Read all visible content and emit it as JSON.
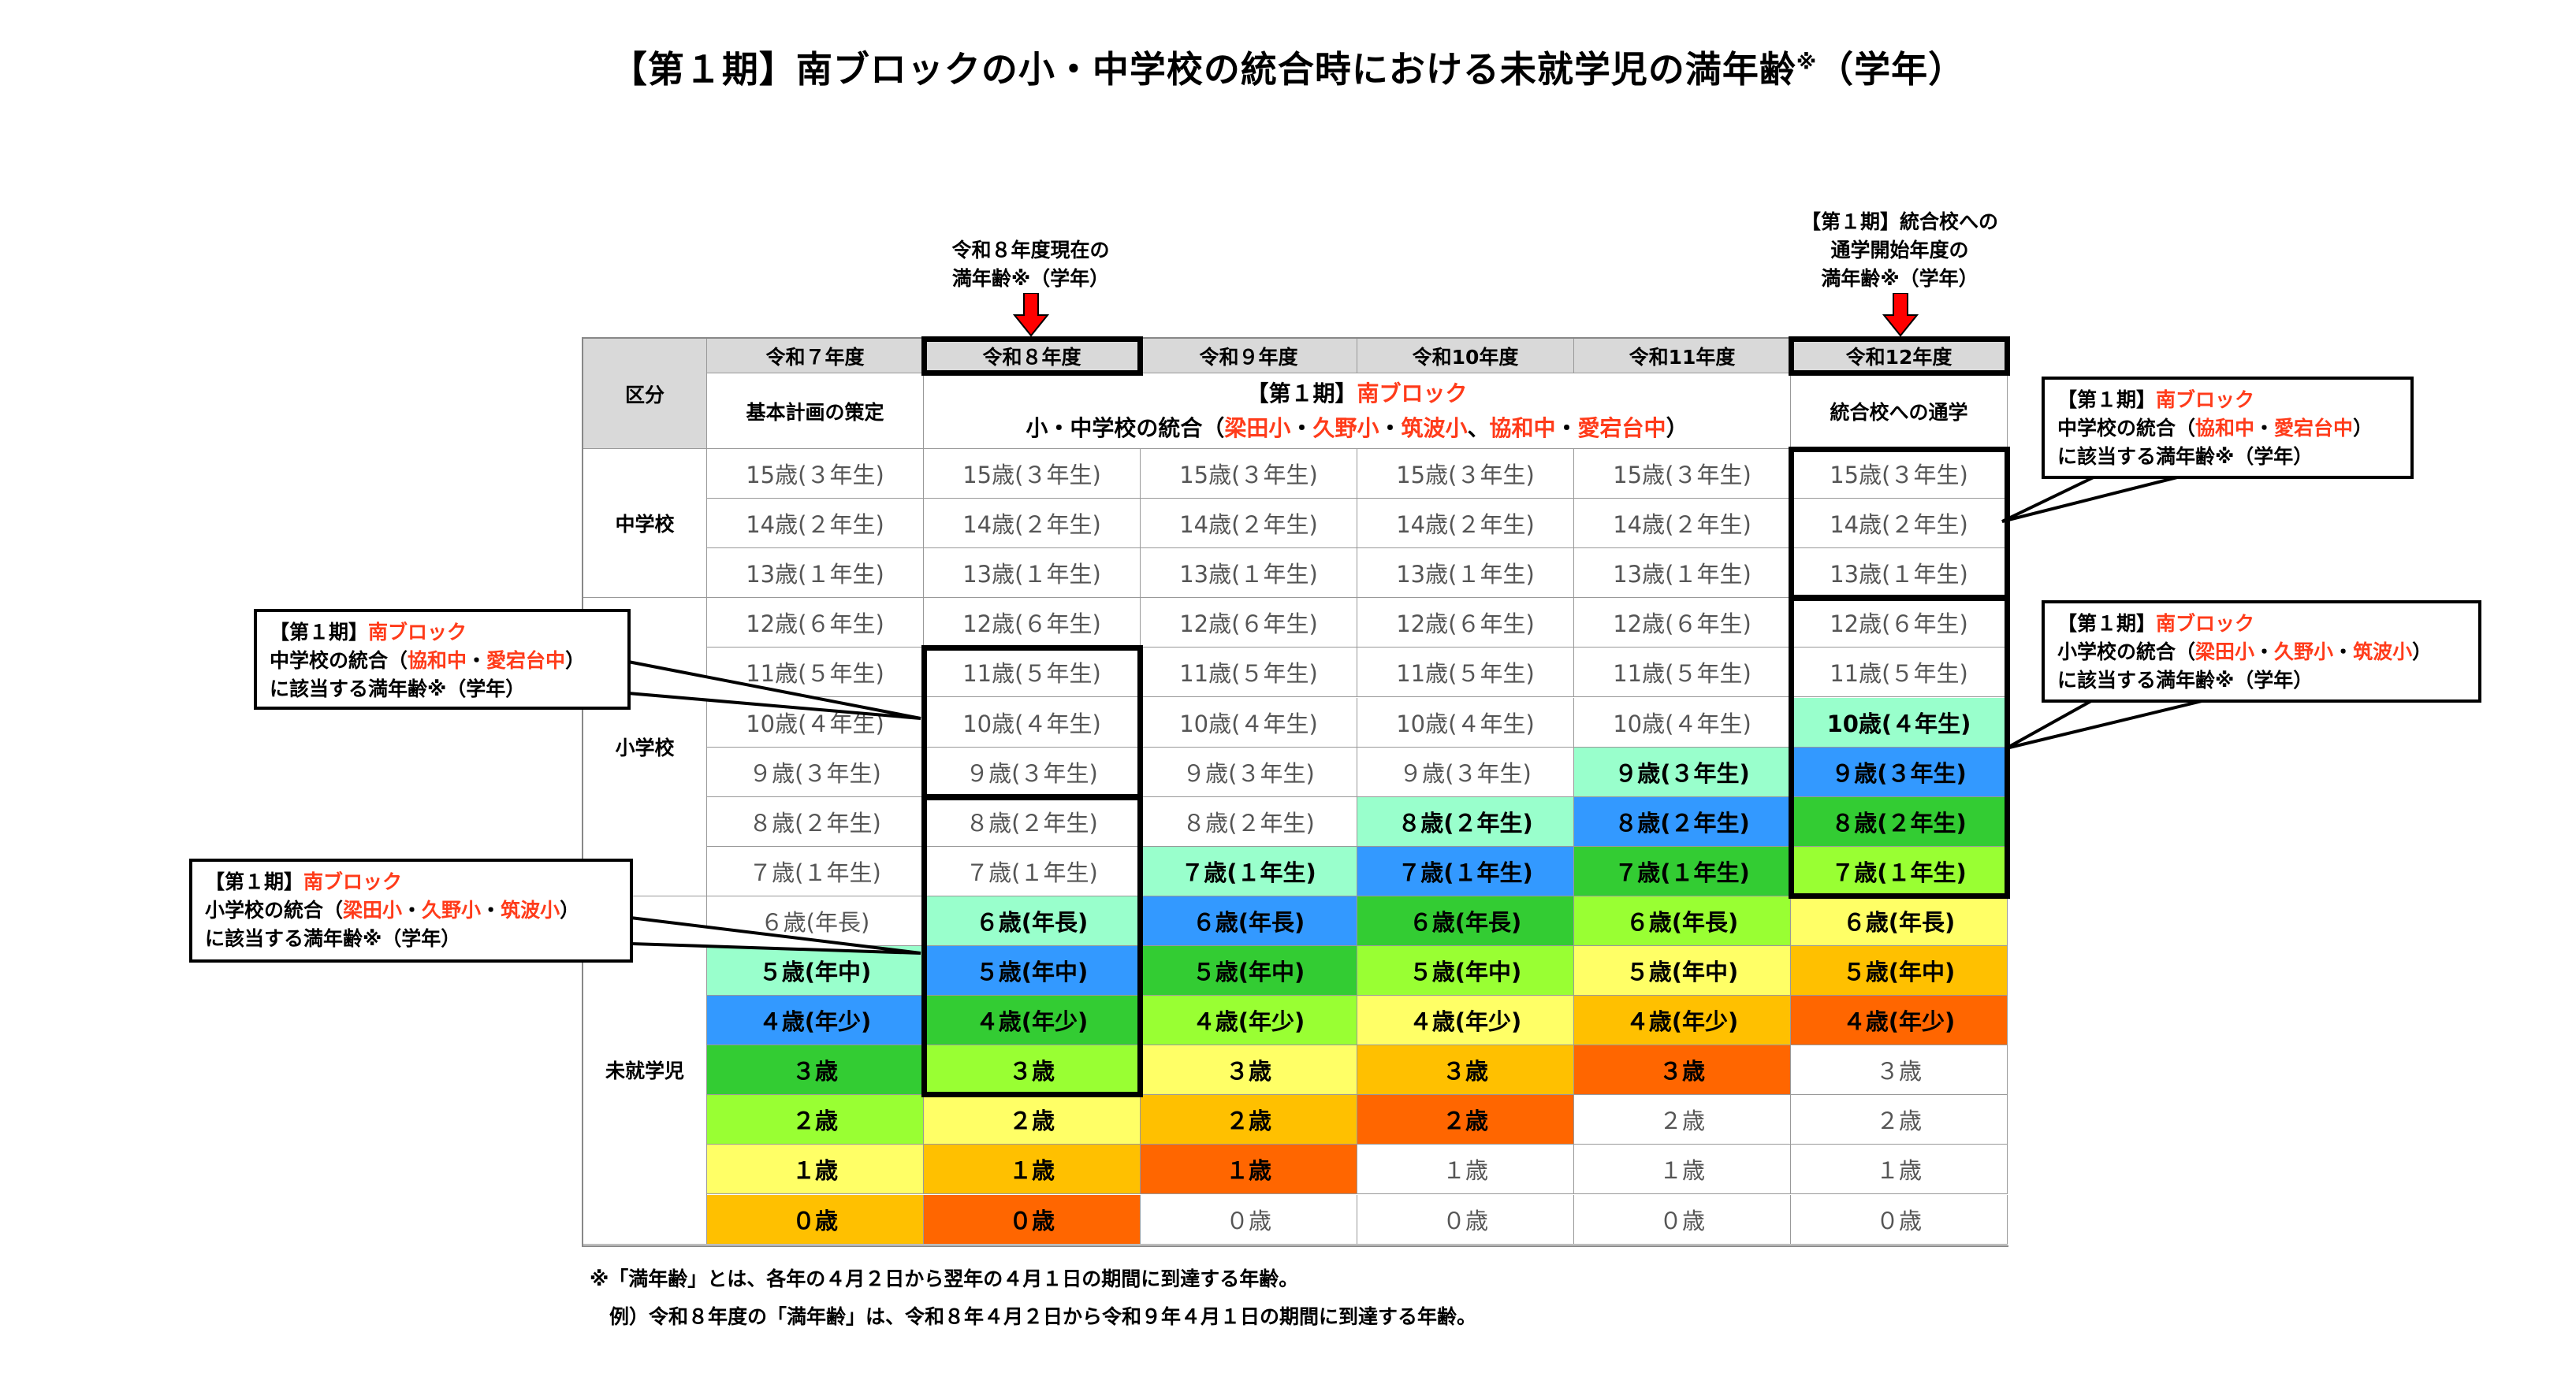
{
  "title": {
    "text": "【第１期】南ブロックの小・中学校の統合時における未就学児の満年齢",
    "mark": "※",
    "suffix": "（学年）"
  },
  "annotations": {
    "current": [
      "令和８年度現在の",
      "満年齢※（学年）"
    ],
    "start": [
      "【第１期】統合校への",
      "通学開始年度の",
      "満年齢※（学年）"
    ],
    "arrow_color": "#ff0000"
  },
  "table": {
    "corner_label": "区分",
    "years": [
      "令和７年度",
      "令和８年度",
      "令和９年度",
      "令和10年度",
      "令和11年度",
      "令和12年度"
    ],
    "phase": {
      "plan": "基本計画の策定",
      "merge_line1": [
        {
          "t": "【第１期】",
          "red": false
        },
        {
          "t": "南ブロック",
          "red": true
        }
      ],
      "merge_line2": [
        {
          "t": "小・中学校の統合（",
          "red": false
        },
        {
          "t": "梁田小",
          "red": true
        },
        {
          "t": "・",
          "red": false
        },
        {
          "t": "久野小",
          "red": true
        },
        {
          "t": "・",
          "red": false
        },
        {
          "t": "筑波小",
          "red": true
        },
        {
          "t": "、",
          "red": false
        },
        {
          "t": "協和中",
          "red": true
        },
        {
          "t": "・",
          "red": false
        },
        {
          "t": "愛宕台中",
          "red": true
        },
        {
          "t": "）",
          "red": false
        }
      ],
      "commute": "統合校への通学"
    },
    "groups": [
      {
        "label": "中学校",
        "rows": 3
      },
      {
        "label": "小学校",
        "rows": 6
      },
      {
        "label": "未就学児",
        "rows": 7
      }
    ],
    "rows": [
      {
        "age": 15,
        "label": "15歳(３年生)"
      },
      {
        "age": 14,
        "label": "14歳(２年生)"
      },
      {
        "age": 13,
        "label": "13歳(１年生)"
      },
      {
        "age": 12,
        "label": "12歳(６年生)"
      },
      {
        "age": 11,
        "label": "11歳(５年生)"
      },
      {
        "age": 10,
        "label": "10歳(４年生)"
      },
      {
        "age": 9,
        "label": "９歳(３年生)"
      },
      {
        "age": 8,
        "label": "８歳(２年生)"
      },
      {
        "age": 7,
        "label": "７歳(１年生)"
      },
      {
        "age": 6,
        "label": "６歳(年長)"
      },
      {
        "age": 5,
        "label": "５歳(年中)"
      },
      {
        "age": 4,
        "label": "４歳(年少)"
      },
      {
        "age": 3,
        "label": "３歳"
      },
      {
        "age": 2,
        "label": "２歳"
      },
      {
        "age": 1,
        "label": "１歳"
      },
      {
        "age": 0,
        "label": "０歳"
      }
    ],
    "cohort_colors_by_age_in_first_year": {
      "5": "#99ffcc",
      "4": "#3399ff",
      "3": "#33cc33",
      "2": "#99ff33",
      "1": "#ffff66",
      "0": "#ffc000",
      "-1": "#ff6600"
    },
    "header_bg": "#d9d9d9"
  },
  "callouts": [
    {
      "lines": [
        [
          {
            "t": "【第１期】",
            "red": false
          },
          {
            "t": "南ブロック",
            "red": true
          }
        ],
        [
          {
            "t": "中学校の統合（",
            "red": false
          },
          {
            "t": "協和中",
            "red": true
          },
          {
            "t": "・",
            "red": false
          },
          {
            "t": "愛宕台中",
            "red": true
          },
          {
            "t": "）",
            "red": false
          }
        ],
        [
          {
            "t": "に該当する満年齢※（学年）",
            "red": false
          }
        ]
      ]
    },
    {
      "lines": [
        [
          {
            "t": "【第１期】",
            "red": false
          },
          {
            "t": "南ブロック",
            "red": true
          }
        ],
        [
          {
            "t": "小学校の統合（",
            "red": false
          },
          {
            "t": "梁田小",
            "red": true
          },
          {
            "t": "・",
            "red": false
          },
          {
            "t": "久野小",
            "red": true
          },
          {
            "t": "・",
            "red": false
          },
          {
            "t": "筑波小",
            "red": true
          },
          {
            "t": "）",
            "red": false
          }
        ],
        [
          {
            "t": "に該当する満年齢※（学年）",
            "red": false
          }
        ]
      ]
    },
    {
      "lines": [
        [
          {
            "t": "【第１期】",
            "red": false
          },
          {
            "t": "南ブロック",
            "red": true
          }
        ],
        [
          {
            "t": "中学校の統合（",
            "red": false
          },
          {
            "t": "協和中",
            "red": true
          },
          {
            "t": "・",
            "red": false
          },
          {
            "t": "愛宕台中",
            "red": true
          },
          {
            "t": "）",
            "red": false
          }
        ],
        [
          {
            "t": "に該当する満年齢※（学年）",
            "red": false
          }
        ]
      ]
    },
    {
      "lines": [
        [
          {
            "t": "【第１期】",
            "red": false
          },
          {
            "t": "南ブロック",
            "red": true
          }
        ],
        [
          {
            "t": "小学校の統合（",
            "red": false
          },
          {
            "t": "梁田小",
            "red": true
          },
          {
            "t": "・",
            "red": false
          },
          {
            "t": "久野小",
            "red": true
          },
          {
            "t": "・",
            "red": false
          },
          {
            "t": "筑波小",
            "red": true
          },
          {
            "t": "）",
            "red": false
          }
        ],
        [
          {
            "t": "に該当する満年齢※（学年）",
            "red": false
          }
        ]
      ]
    }
  ],
  "footnotes": [
    "※「満年齢」とは、各年の４月２日から翌年の４月１日の期間に到達する年齢。",
    "　例）令和８年度の「満年齢」は、令和８年４月２日から令和９年４月１日の期間に到達する年齢。"
  ]
}
